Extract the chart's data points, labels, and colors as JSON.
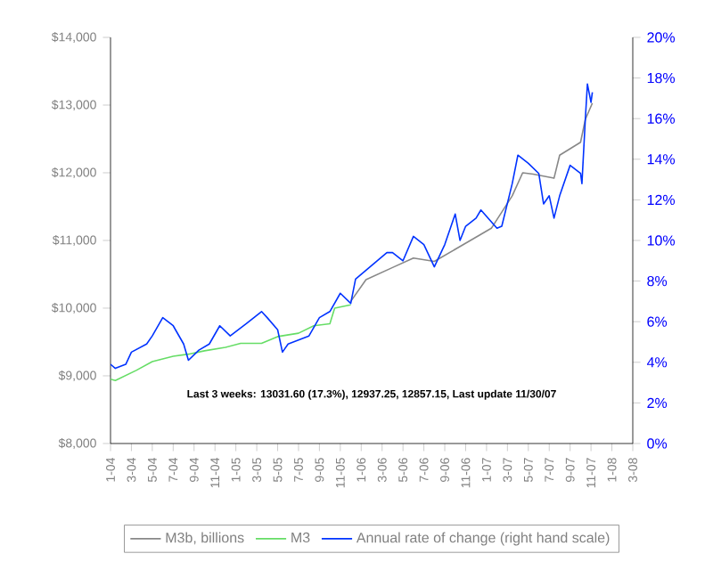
{
  "chart_data": {
    "type": "line",
    "annotations": [
      "Last 3 weeks: 13031.60 (17.3%), 12937.25, 12857.15, Last update 11/30/07"
    ],
    "xlim": [
      "2004-01",
      "2008-03"
    ],
    "xticks": [
      {
        "value": "2004-01",
        "label": "1-04"
      },
      {
        "value": "2004-03",
        "label": "3-04"
      },
      {
        "value": "2004-05",
        "label": "5-04"
      },
      {
        "value": "2004-07",
        "label": "7-04"
      },
      {
        "value": "2004-09",
        "label": "9-04"
      },
      {
        "value": "2004-11",
        "label": "11-04"
      },
      {
        "value": "2005-01",
        "label": "1-05"
      },
      {
        "value": "2005-03",
        "label": "3-05"
      },
      {
        "value": "2005-05",
        "label": "5-05"
      },
      {
        "value": "2005-07",
        "label": "7-05"
      },
      {
        "value": "2005-09",
        "label": "9-05"
      },
      {
        "value": "2005-11",
        "label": "11-05"
      },
      {
        "value": "2006-01",
        "label": "1-06"
      },
      {
        "value": "2006-03",
        "label": "3-06"
      },
      {
        "value": "2006-05",
        "label": "5-06"
      },
      {
        "value": "2006-07",
        "label": "7-06"
      },
      {
        "value": "2006-09",
        "label": "9-06"
      },
      {
        "value": "2006-11",
        "label": "11-06"
      },
      {
        "value": "2007-01",
        "label": "1-07"
      },
      {
        "value": "2007-03",
        "label": "3-07"
      },
      {
        "value": "2007-05",
        "label": "5-07"
      },
      {
        "value": "2007-07",
        "label": "7-07"
      },
      {
        "value": "2007-09",
        "label": "9-07"
      },
      {
        "value": "2007-11",
        "label": "11-07"
      },
      {
        "value": "2008-01",
        "label": "1-08"
      },
      {
        "value": "2008-03",
        "label": "3-08"
      }
    ],
    "ylim": [
      8000,
      14000
    ],
    "yticks": [
      {
        "value": 8000,
        "label": "$8,000"
      },
      {
        "value": 9000,
        "label": "$9,000"
      },
      {
        "value": 10000,
        "label": "$10,000"
      },
      {
        "value": 11000,
        "label": "$11,000"
      },
      {
        "value": 12000,
        "label": "$12,000"
      },
      {
        "value": 13000,
        "label": "$13,000"
      },
      {
        "value": 14000,
        "label": "$14,000"
      }
    ],
    "y2lim": [
      0,
      20
    ],
    "y2ticks": [
      {
        "value": 0,
        "label": "0%"
      },
      {
        "value": 2,
        "label": "2%"
      },
      {
        "value": 4,
        "label": "4%"
      },
      {
        "value": 6,
        "label": "6%"
      },
      {
        "value": 8,
        "label": "8%"
      },
      {
        "value": 10,
        "label": "10%"
      },
      {
        "value": 12,
        "label": "12%"
      },
      {
        "value": 14,
        "label": "14%"
      },
      {
        "value": 16,
        "label": "16%"
      },
      {
        "value": 18,
        "label": "18%"
      },
      {
        "value": 20,
        "label": "20%"
      }
    ],
    "legend": "bottom",
    "series": [
      {
        "name": "M3b, billions",
        "color": "#888888",
        "x": [
          "2005-12-01",
          "2006-01-15",
          "2006-04-01",
          "2006-06-01",
          "2006-08-01",
          "2006-10-01",
          "2006-12-01",
          "2007-01-15",
          "2007-03-15",
          "2007-04-15",
          "2007-05-15",
          "2007-07-15",
          "2007-08-01",
          "2007-10-01",
          "2007-10-15",
          "2007-11-05"
        ],
        "values": [
          10100,
          10420,
          10600,
          10740,
          10690,
          10870,
          11050,
          11180,
          11660,
          12000,
          11980,
          11920,
          12260,
          12450,
          12790,
          13030
        ]
      },
      {
        "name": "M3",
        "color": "#66dd66",
        "x": [
          "2004-01-01",
          "2004-01-15",
          "2004-03-15",
          "2004-05-01",
          "2004-07-01",
          "2004-08-15",
          "2004-10-01",
          "2004-12-01",
          "2005-01-15",
          "2005-03-15",
          "2005-05-01",
          "2005-07-01",
          "2005-08-15",
          "2005-10-01",
          "2005-10-15",
          "2005-12-01"
        ],
        "values": [
          8950,
          8930,
          9080,
          9210,
          9290,
          9320,
          9370,
          9420,
          9480,
          9480,
          9580,
          9630,
          9740,
          9770,
          10000,
          10050
        ]
      },
      {
        "name": "Annual rate of change (right hand scale)",
        "color": "#0033ff",
        "axis": "y2",
        "x": [
          "2004-01-01",
          "2004-01-15",
          "2004-02-15",
          "2004-03-01",
          "2004-04-15",
          "2004-05-01",
          "2004-06-01",
          "2004-07-01",
          "2004-08-01",
          "2004-08-15",
          "2004-09-15",
          "2004-10-15",
          "2004-11-15",
          "2004-12-15",
          "2005-02-01",
          "2005-03-15",
          "2005-04-01",
          "2005-05-01",
          "2005-05-15",
          "2005-06-01",
          "2005-08-01",
          "2005-09-01",
          "2005-10-01",
          "2005-11-01",
          "2005-12-01",
          "2005-12-15",
          "2006-03-15",
          "2006-04-01",
          "2006-05-01",
          "2006-06-01",
          "2006-07-01",
          "2006-08-01",
          "2006-09-01",
          "2006-10-01",
          "2006-10-15",
          "2006-11-01",
          "2006-12-01",
          "2006-12-15",
          "2007-02-01",
          "2007-02-15",
          "2007-03-15",
          "2007-04-01",
          "2007-05-01",
          "2007-06-01",
          "2007-06-15",
          "2007-07-01",
          "2007-07-15",
          "2007-08-01",
          "2007-09-01",
          "2007-10-01",
          "2007-10-05",
          "2007-10-15",
          "2007-10-21",
          "2007-11-01",
          "2007-11-05"
        ],
        "values": [
          3.9,
          3.7,
          3.9,
          4.5,
          4.9,
          5.3,
          6.2,
          5.8,
          4.9,
          4.1,
          4.6,
          4.9,
          5.8,
          5.3,
          5.9,
          6.5,
          6.2,
          5.6,
          4.5,
          4.9,
          5.3,
          6.2,
          6.5,
          7.4,
          6.9,
          8.1,
          9.4,
          9.4,
          9,
          10.2,
          9.8,
          8.7,
          9.8,
          11.3,
          10,
          10.7,
          11.1,
          11.5,
          10.6,
          10.7,
          12.8,
          14.2,
          13.8,
          13.3,
          11.8,
          12.2,
          11.1,
          12.2,
          13.7,
          13.3,
          12.8,
          16,
          17.7,
          16.8,
          17.3
        ]
      }
    ]
  }
}
